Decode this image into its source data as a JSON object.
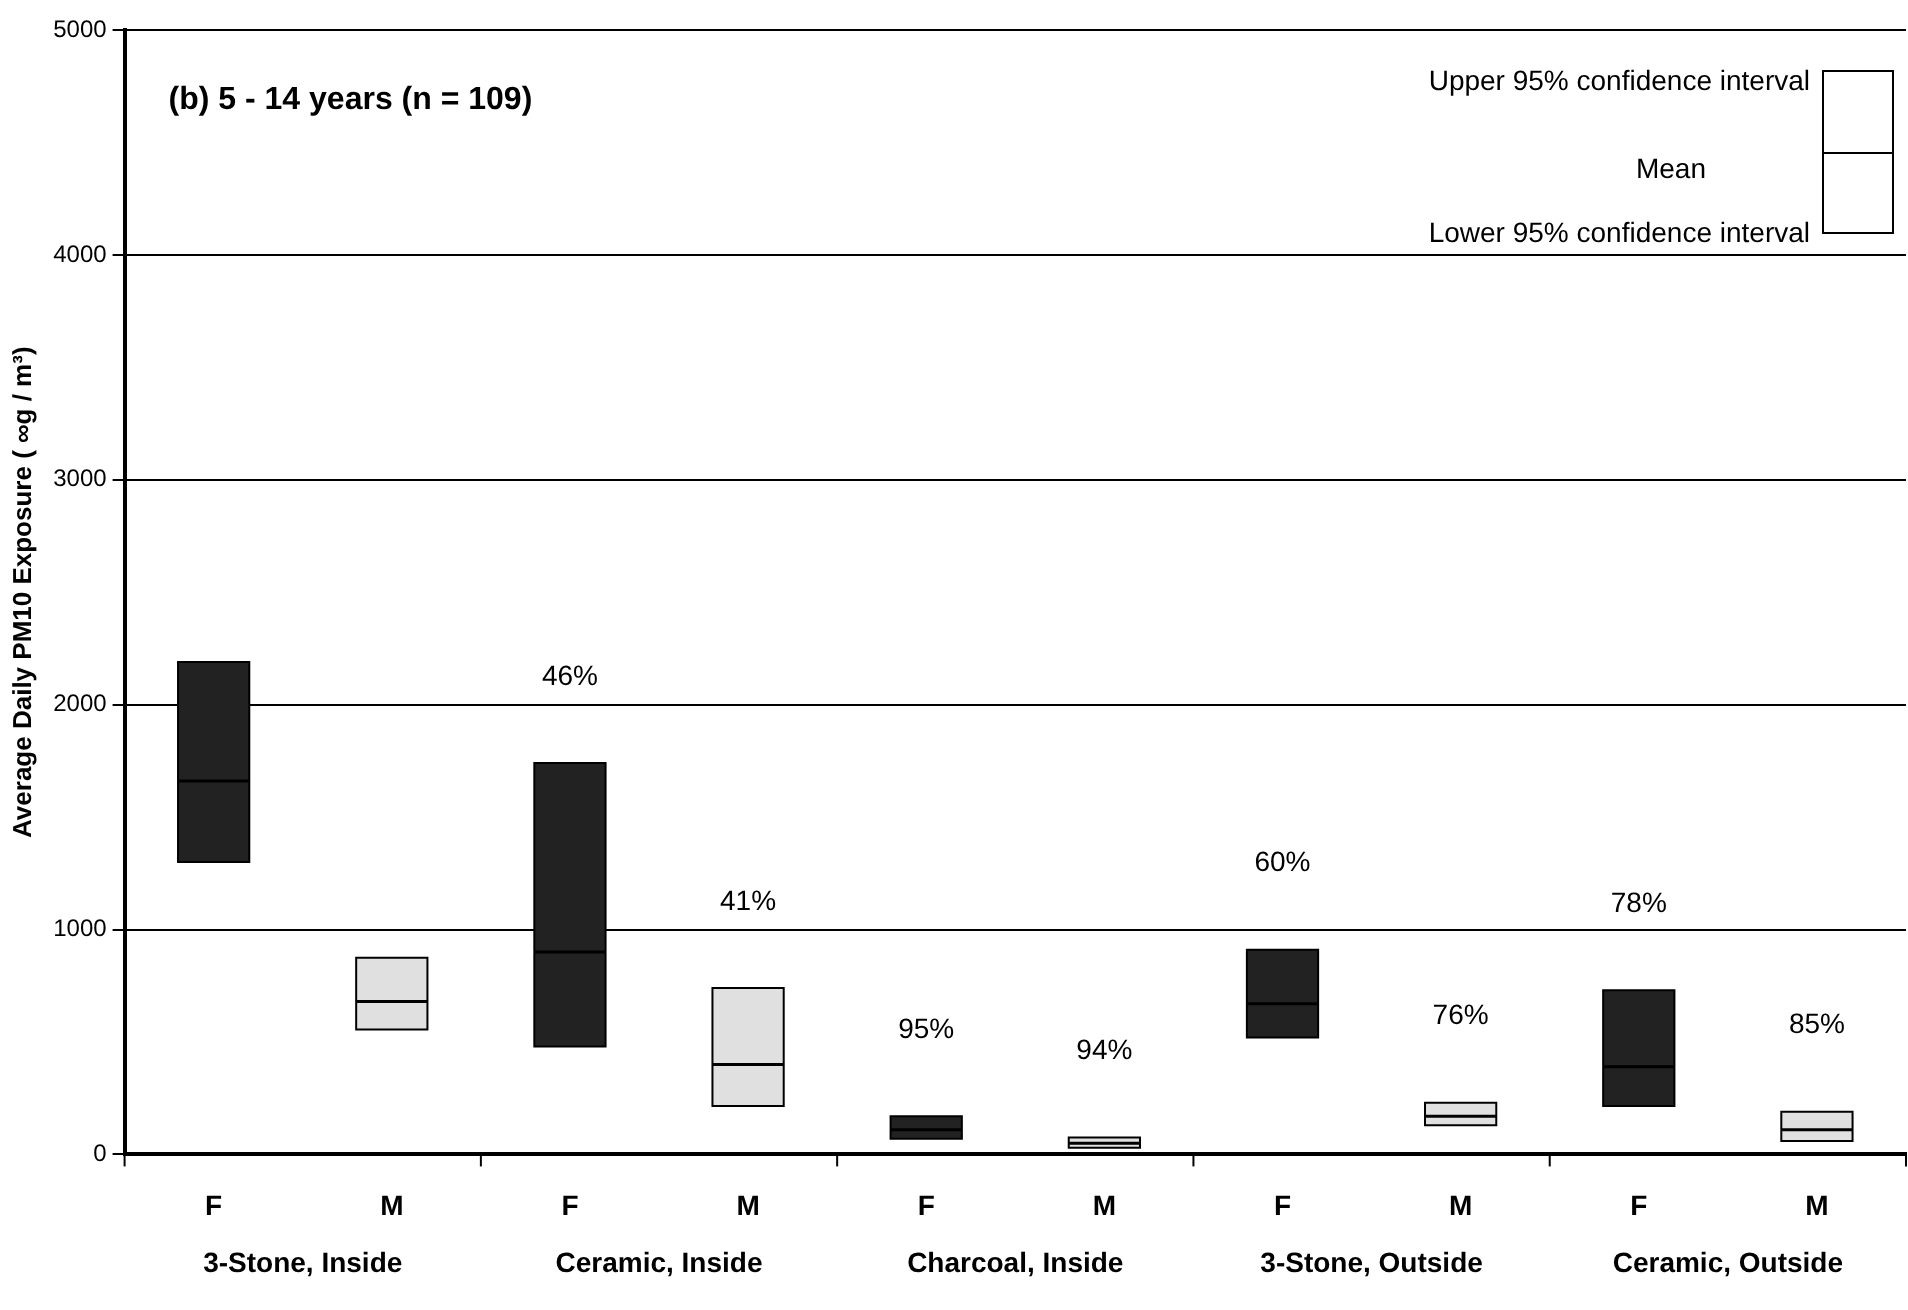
{
  "chart_data": {
    "type": "box",
    "title": "(b) 5 - 14 years (n = 109)",
    "ylabel": "Average Daily PM10 Exposure ( ∞g / m³)",
    "categories": [
      "F",
      "M",
      "F",
      "M",
      "F",
      "M",
      "F",
      "M",
      "F",
      "M"
    ],
    "boxes": [
      {
        "low": 1300,
        "q1": 1300,
        "median": 1660,
        "q3": 2190,
        "high": 2190
      },
      {
        "low": 555,
        "q1": 555,
        "median": 680,
        "q3": 875,
        "high": 875
      },
      {
        "low": 480,
        "q1": 480,
        "median": 900,
        "q3": 1740,
        "high": 1740
      },
      {
        "low": 215,
        "q1": 215,
        "median": 400,
        "q3": 740,
        "high": 740
      },
      {
        "low": 70,
        "q1": 70,
        "median": 110,
        "q3": 170,
        "high": 170
      },
      {
        "low": 30,
        "q1": 30,
        "median": 50,
        "q3": 75,
        "high": 75
      },
      {
        "low": 520,
        "q1": 520,
        "median": 670,
        "q3": 910,
        "high": 910
      },
      {
        "low": 130,
        "q1": 130,
        "median": 170,
        "q3": 230,
        "high": 230
      },
      {
        "low": 215,
        "q1": 215,
        "median": 390,
        "q3": 730,
        "high": 730
      },
      {
        "low": 60,
        "q1": 60,
        "median": 110,
        "q3": 190,
        "high": 190
      }
    ],
    "colors": [
      "#222222",
      "#e0e0e0",
      "#222222",
      "#e0e0e0",
      "#222222",
      "#e0e0e0",
      "#222222",
      "#e0e0e0",
      "#222222",
      "#e0e0e0"
    ],
    "value_labels": [
      null,
      null,
      "46%",
      "41%",
      "95%",
      "94%",
      "60%",
      "76%",
      "78%",
      "85%"
    ],
    "annotations": [
      "3-Stone, Inside",
      "Ceramic, Inside",
      "Charcoal, Inside",
      "3-Stone, Outside",
      "Ceramic, Outside",
      "Upper 95% confidence interval",
      "Mean",
      "Lower 95% confidence interval"
    ],
    "ylim": [
      0,
      5000
    ],
    "yticks": [
      0,
      1000,
      2000,
      3000,
      4000,
      5000
    ],
    "grid": "y",
    "legend": false
  }
}
